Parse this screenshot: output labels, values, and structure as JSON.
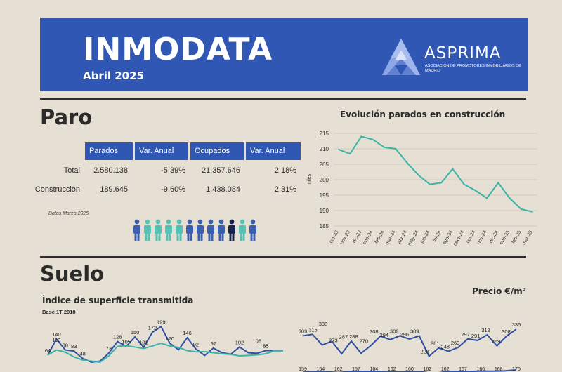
{
  "header": {
    "title": "INMODATA",
    "subtitle": "Abril 2025",
    "logo_name": "ASPRIMA",
    "logo_tagline": "Asociación de Promotores Inmobiliarios de Madrid"
  },
  "paro": {
    "section_title": "Paro",
    "table": {
      "columns": [
        "Parados",
        "Var. Anual",
        "Ocupados",
        "Var. Anual"
      ],
      "rows": [
        {
          "label": "Total",
          "values": [
            "2.580.138",
            "-5,39%",
            "21.357.646",
            "2,18%"
          ]
        },
        {
          "label": "Construcción",
          "values": [
            "189.645",
            "-9,60%",
            "1.438.084",
            "2,31%"
          ]
        }
      ]
    },
    "note": "Datos Marzo 2025",
    "people_icons": {
      "count": 12,
      "colors": [
        "#3b5fb0",
        "#56c1b5",
        "#56c1b5",
        "#56c1b5",
        "#56c1b5",
        "#3b5fb0",
        "#3b5fb0",
        "#3b5fb0",
        "#3b5fb0",
        "#15234d",
        "#56c1b5",
        "#3b5fb0"
      ]
    }
  },
  "suelo": {
    "section_title": "Suelo"
  },
  "chart_data": [
    {
      "type": "line",
      "title": "Evolución parados en construcción",
      "ylabel": "miles",
      "ylim": [
        185,
        215
      ],
      "yticks": [
        185,
        190,
        195,
        200,
        205,
        210,
        215
      ],
      "categories": [
        "oct-23",
        "nov-23",
        "dic-23",
        "ene-24",
        "feb-24",
        "mar-24",
        "abr-24",
        "may-24",
        "jun-24",
        "jul-24",
        "ago-24",
        "sept-24",
        "oct-24",
        "nov-24",
        "dic-24",
        "ene-25",
        "feb-25",
        "mar-25"
      ],
      "values": [
        209.8,
        208.4,
        214.0,
        213.0,
        210.5,
        210.0,
        205.5,
        201.5,
        198.5,
        199.0,
        203.5,
        198.5,
        196.5,
        194.0,
        199.0,
        194.0,
        190.5,
        189.6
      ],
      "color": "#3bb3a8",
      "grid": true
    },
    {
      "type": "line",
      "title": "Índice de superficie transmitida",
      "subtitle": "Base 1T 2018",
      "series": [
        {
          "color": "#2f4fa3",
          "values": [
            64,
            140,
            88,
            83,
            48,
            30,
            35,
            73,
            128,
            105,
            150,
            101,
            172,
            199,
            120,
            89,
            146,
            92,
            62,
            97,
            75,
            68,
            102,
            75,
            72,
            85,
            85,
            84
          ]
        },
        {
          "color": "#3bb3a8",
          "values": [
            64,
            88,
            78,
            55,
            40,
            35,
            30,
            60,
            105,
            108,
            102,
            95,
            107,
            120,
            107,
            100,
            85,
            79,
            80,
            75,
            70,
            67,
            60,
            62,
            65,
            70,
            84,
            84
          ]
        }
      ],
      "data_labels": [
        {
          "v": 64,
          "t": "64"
        },
        {
          "v": 140,
          "t": "140"
        },
        {
          "v": 88,
          "t": "88"
        },
        {
          "v": 83,
          "t": "83"
        },
        {
          "v": 48,
          "t": "48"
        },
        {
          "v": 73,
          "t": "73"
        },
        {
          "v": 128,
          "t": "128"
        },
        {
          "v": 105,
          "t": "105"
        },
        {
          "v": 108,
          "t": "108"
        },
        {
          "v": 150,
          "t": "150"
        },
        {
          "v": 101,
          "t": "101"
        },
        {
          "v": 172,
          "t": "172"
        },
        {
          "v": 199,
          "t": "199"
        },
        {
          "v": 120,
          "t": "120"
        },
        {
          "v": 113,
          "t": "113"
        },
        {
          "v": 146,
          "t": "146"
        },
        {
          "v": 92,
          "t": "92"
        },
        {
          "v": 97,
          "t": "97"
        },
        {
          "v": 102,
          "t": "102"
        },
        {
          "v": 85,
          "t": "85"
        },
        {
          "v": 85,
          "t": "85"
        }
      ]
    },
    {
      "type": "line",
      "title": "Precio €/m²",
      "series": [
        {
          "color": "#2f4fa3",
          "values": [
            309,
            315,
            273,
            287,
            238,
            288,
            240,
            270,
            308,
            294,
            309,
            296,
            309,
            228,
            261,
            248,
            263,
            297,
            291,
            313,
            269,
            308,
            335
          ]
        },
        {
          "color": "#2f4fa3",
          "values": [
            159,
            164,
            162,
            157,
            164,
            165,
            165,
            162,
            160,
            162,
            162,
            150,
            162,
            165,
            164,
            167,
            166,
            168,
            175
          ]
        }
      ],
      "top_labels": [
        "309",
        "315",
        "338",
        "273",
        "287",
        "288",
        "270",
        "308",
        "294",
        "309",
        "296",
        "309",
        "228",
        "261",
        "248",
        "263",
        "297",
        "291",
        "313",
        "269",
        "308",
        "335"
      ],
      "bottom_labels": [
        "159",
        "164",
        "162",
        "157",
        "164",
        "162",
        "160",
        "162",
        "162",
        "167",
        "166",
        "168",
        "175"
      ]
    }
  ]
}
